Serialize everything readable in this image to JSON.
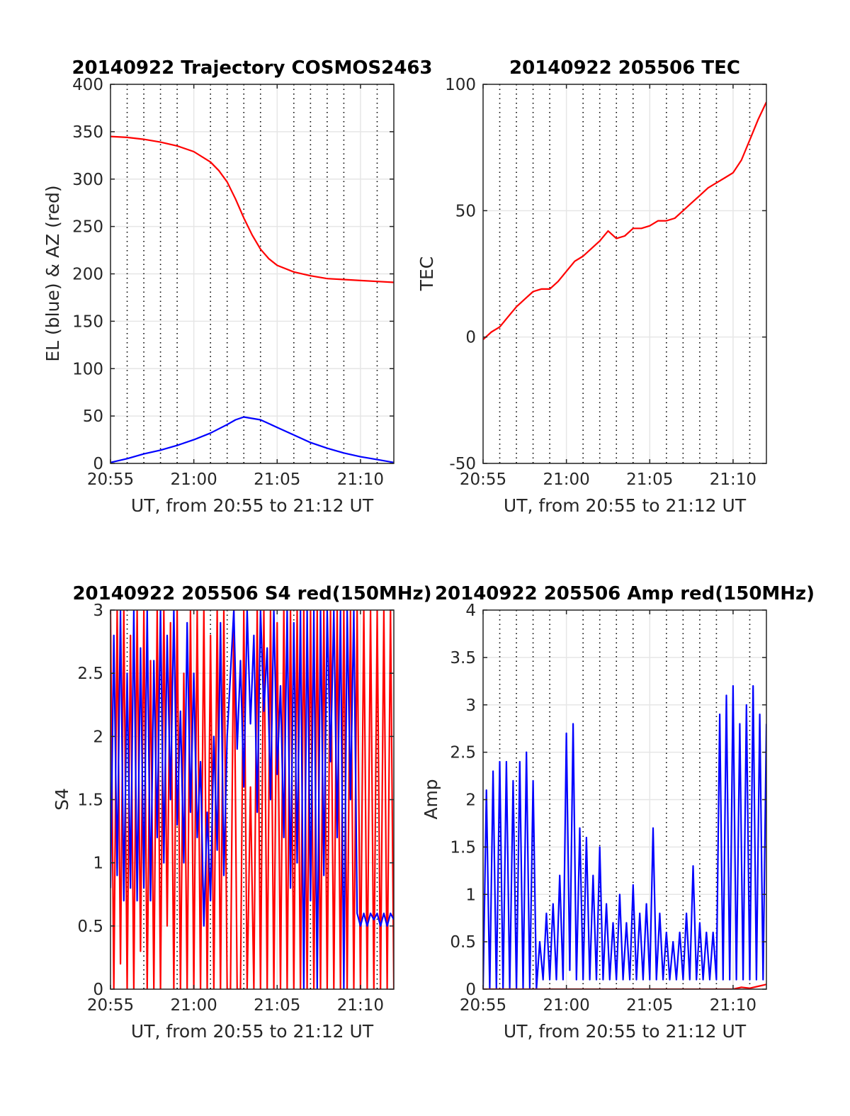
{
  "chart_data": [
    {
      "type": "line",
      "title": "20140922 Trajectory COSMOS2463",
      "xlabel": "UT, from 20:55 to 21:12 UT",
      "ylabel": "EL (blue) & AZ (red)",
      "xlim": [
        0,
        17
      ],
      "ylim": [
        0,
        400
      ],
      "xticks": [
        {
          "v": 0,
          "label": "20:55"
        },
        {
          "v": 5,
          "label": "21:00"
        },
        {
          "v": 10,
          "label": "21:05"
        },
        {
          "v": 15,
          "label": "21:10"
        }
      ],
      "yticks": [
        {
          "v": 0,
          "label": "0"
        },
        {
          "v": 50,
          "label": "50"
        },
        {
          "v": 100,
          "label": "100"
        },
        {
          "v": 150,
          "label": "150"
        },
        {
          "v": 200,
          "label": "200"
        },
        {
          "v": 250,
          "label": "250"
        },
        {
          "v": 300,
          "label": "300"
        },
        {
          "v": 350,
          "label": "350"
        },
        {
          "v": 400,
          "label": "400"
        }
      ],
      "minor_xgrid": [
        1,
        2,
        3,
        4,
        6,
        7,
        8,
        9,
        11,
        12,
        13,
        14,
        16
      ],
      "grid": true,
      "series": [
        {
          "color": "#ff0000",
          "x": [
            0,
            1,
            2,
            3,
            4,
            5,
            6,
            6.5,
            7,
            7.5,
            8,
            8.5,
            9,
            9.5,
            10,
            11,
            12,
            13,
            14,
            15,
            16,
            17
          ],
          "y": [
            345,
            344,
            342,
            339,
            335,
            329,
            318,
            309,
            297,
            279,
            259,
            241,
            226,
            216,
            209,
            202,
            198,
            195,
            194,
            193,
            192,
            191
          ]
        },
        {
          "color": "#0000ff",
          "x": [
            0,
            1,
            2,
            3,
            4,
            5,
            6,
            7,
            7.5,
            8,
            9,
            10,
            11,
            12,
            13,
            14,
            15,
            16,
            17
          ],
          "y": [
            1,
            5,
            10,
            14,
            19,
            25,
            32,
            41,
            46,
            49,
            46,
            38,
            30,
            22,
            16,
            11,
            7,
            4,
            1
          ]
        }
      ]
    },
    {
      "type": "line",
      "title": "20140922 205506 TEC",
      "xlabel": "UT, from 20:55 to 21:12 UT",
      "ylabel": "TEC",
      "xlim": [
        0,
        17
      ],
      "ylim": [
        -50,
        100
      ],
      "xticks": [
        {
          "v": 0,
          "label": "20:55"
        },
        {
          "v": 5,
          "label": "21:00"
        },
        {
          "v": 10,
          "label": "21:05"
        },
        {
          "v": 15,
          "label": "21:10"
        }
      ],
      "yticks": [
        {
          "v": -50,
          "label": "-50"
        },
        {
          "v": 0,
          "label": "0"
        },
        {
          "v": 50,
          "label": "50"
        },
        {
          "v": 100,
          "label": "100"
        }
      ],
      "minor_xgrid": [
        1,
        2,
        3,
        4,
        6,
        7,
        8,
        9,
        11,
        12,
        13,
        14,
        16
      ],
      "grid": true,
      "series": [
        {
          "color": "#ff0000",
          "x": [
            0,
            0.5,
            1,
            1.5,
            2,
            2.5,
            3,
            3.5,
            4,
            4.5,
            5,
            5.5,
            6,
            6.5,
            7,
            7.5,
            8,
            8.5,
            9,
            9.5,
            10,
            10.5,
            11,
            11.5,
            12,
            12.5,
            13,
            13.5,
            14,
            14.5,
            15,
            15.5,
            16,
            16.5,
            17
          ],
          "y": [
            -1,
            2,
            4,
            8,
            12,
            15,
            18,
            19,
            19,
            22,
            26,
            30,
            32,
            35,
            38,
            42,
            39,
            40,
            43,
            43,
            44,
            46,
            46,
            47,
            50,
            53,
            56,
            59,
            61,
            63,
            65,
            70,
            78,
            86,
            93
          ]
        }
      ]
    },
    {
      "type": "line",
      "title": "20140922 205506 S4 red(150MHz)",
      "xlabel": "UT, from 20:55 to 21:12 UT",
      "ylabel": "S4",
      "xlim": [
        0,
        17
      ],
      "ylim": [
        0,
        3
      ],
      "xticks": [
        {
          "v": 0,
          "label": "20:55"
        },
        {
          "v": 5,
          "label": "21:00"
        },
        {
          "v": 10,
          "label": "21:05"
        },
        {
          "v": 15,
          "label": "21:10"
        }
      ],
      "yticks": [
        {
          "v": 0,
          "label": "0"
        },
        {
          "v": 0.5,
          "label": "0.5"
        },
        {
          "v": 1,
          "label": "1"
        },
        {
          "v": 1.5,
          "label": "1.5"
        },
        {
          "v": 2,
          "label": "2"
        },
        {
          "v": 2.5,
          "label": "2.5"
        },
        {
          "v": 3,
          "label": "3"
        }
      ],
      "minor_xgrid": [
        1,
        2,
        3,
        4,
        6,
        7,
        8,
        9,
        11,
        12,
        13,
        14,
        16
      ],
      "grid": true,
      "series": [
        {
          "color": "#ff0000",
          "x": [
            0,
            0.2,
            0.4,
            0.6,
            0.8,
            1.0,
            1.2,
            1.4,
            1.6,
            1.8,
            2.0,
            2.2,
            2.4,
            2.6,
            2.8,
            3.0,
            3.2,
            3.4,
            3.6,
            3.8,
            4.0,
            4.2,
            4.4,
            4.6,
            4.8,
            5.0,
            5.2,
            5.4,
            5.6,
            5.8,
            6.0,
            6.2,
            6.4,
            6.6,
            6.8,
            7.0,
            7.2,
            7.4,
            7.6,
            7.8,
            8.0,
            8.2,
            8.4,
            8.6,
            8.8,
            9.0,
            9.2,
            9.4,
            9.6,
            9.8,
            10.0,
            10.2,
            10.4,
            10.6,
            10.8,
            11.0,
            11.2,
            11.4,
            11.6,
            11.8,
            12.0,
            12.2,
            12.4,
            12.6,
            12.8,
            13.0,
            13.2,
            13.4,
            13.6,
            13.8,
            14.0,
            14.2,
            14.4,
            14.6,
            14.8,
            15.0,
            15.2,
            15.4,
            15.6,
            15.8,
            16.0,
            16.2,
            16.4,
            16.6,
            16.8,
            17.0
          ],
          "y": [
            3,
            0,
            3,
            0.2,
            3,
            0,
            2.8,
            0,
            3,
            0.3,
            3,
            0,
            2.6,
            0,
            3,
            0,
            3,
            0.5,
            2.9,
            0,
            3,
            0,
            2.5,
            0,
            3,
            0,
            3,
            0,
            3,
            0,
            2.8,
            0,
            3,
            0,
            3,
            0,
            0,
            3,
            0,
            0,
            3,
            0,
            1.6,
            0,
            3,
            0,
            3,
            0,
            3,
            0,
            2.9,
            0,
            3,
            0,
            3,
            0,
            3,
            0,
            3,
            0,
            3,
            0,
            3,
            0,
            3,
            0,
            3,
            0,
            3,
            0,
            3,
            0,
            3,
            0,
            3,
            0,
            3,
            0,
            3,
            0,
            3,
            0,
            3,
            0,
            3,
            0
          ]
        },
        {
          "color": "#0000ff",
          "x": [
            0,
            0.2,
            0.4,
            0.6,
            0.8,
            1.0,
            1.2,
            1.4,
            1.6,
            1.8,
            2.0,
            2.2,
            2.4,
            2.6,
            2.8,
            3.0,
            3.2,
            3.4,
            3.6,
            3.8,
            4.0,
            4.2,
            4.4,
            4.6,
            4.8,
            5.0,
            5.2,
            5.4,
            5.6,
            5.8,
            6.0,
            6.2,
            6.4,
            6.6,
            6.8,
            7.0,
            7.2,
            7.4,
            7.6,
            7.8,
            8.0,
            8.2,
            8.4,
            8.6,
            8.8,
            9.0,
            9.2,
            9.4,
            9.6,
            9.8,
            10.0,
            10.2,
            10.4,
            10.6,
            10.8,
            11.0,
            11.2,
            11.4,
            11.6,
            11.8,
            12.0,
            12.2,
            12.4,
            12.6,
            12.8,
            13.0,
            13.2,
            13.4,
            13.6,
            13.8,
            14.0,
            14.2,
            14.4,
            14.6,
            14.8,
            15.0,
            15.2,
            15.4,
            15.6,
            15.8,
            16.0,
            16.2,
            16.4,
            16.6,
            16.8,
            17.0
          ],
          "y": [
            0.8,
            2.8,
            0.9,
            3,
            0.7,
            2.5,
            0.8,
            3,
            0.7,
            2.7,
            0.8,
            3,
            0.7,
            2.6,
            1.2,
            3,
            1.0,
            2.8,
            1.5,
            3,
            1.3,
            2.2,
            1.0,
            2.9,
            1.4,
            2.5,
            1.2,
            1.8,
            0.5,
            1.4,
            0.7,
            2.0,
            1.1,
            2.9,
            0.9,
            2.0,
            2.5,
            3,
            1.9,
            2.6,
            1.6,
            3,
            2.1,
            2.8,
            1.4,
            3,
            2.2,
            2.7,
            1.5,
            3,
            1.7,
            2.4,
            1.2,
            3,
            0.8,
            2.9,
            1.0,
            3,
            0,
            3,
            0.7,
            3,
            0,
            3,
            0.9,
            3,
            1.8,
            3,
            1.2,
            3,
            0,
            3,
            1.5,
            3,
            0.6,
            0.5,
            0.6,
            0.5,
            0.6,
            0.55,
            0.6,
            0.5,
            0.6,
            0.5,
            0.6,
            0.55
          ]
        }
      ]
    },
    {
      "type": "line",
      "title": "20140922 205506 Amp red(150MHz)",
      "xlabel": "UT, from 20:55 to 21:12 UT",
      "ylabel": "Amp",
      "xlim": [
        0,
        17
      ],
      "ylim": [
        0,
        4
      ],
      "xticks": [
        {
          "v": 0,
          "label": "20:55"
        },
        {
          "v": 5,
          "label": "21:00"
        },
        {
          "v": 10,
          "label": "21:05"
        },
        {
          "v": 15,
          "label": "21:10"
        }
      ],
      "yticks": [
        {
          "v": 0,
          "label": "0"
        },
        {
          "v": 0.5,
          "label": "0.5"
        },
        {
          "v": 1,
          "label": "1"
        },
        {
          "v": 1.5,
          "label": "1.5"
        },
        {
          "v": 2,
          "label": "2"
        },
        {
          "v": 2.5,
          "label": "2.5"
        },
        {
          "v": 3,
          "label": "3"
        },
        {
          "v": 3.5,
          "label": "3.5"
        },
        {
          "v": 4,
          "label": "4"
        }
      ],
      "minor_xgrid": [
        1,
        2,
        3,
        4,
        6,
        7,
        8,
        9,
        11,
        12,
        13,
        14,
        16
      ],
      "grid": true,
      "series": [
        {
          "color": "#0000ff",
          "x": [
            0,
            0.2,
            0.4,
            0.6,
            0.8,
            1.0,
            1.2,
            1.4,
            1.6,
            1.8,
            2.0,
            2.2,
            2.4,
            2.6,
            2.8,
            3.0,
            3.2,
            3.4,
            3.6,
            3.8,
            4.0,
            4.2,
            4.4,
            4.6,
            4.8,
            5.0,
            5.2,
            5.4,
            5.6,
            5.8,
            6.0,
            6.2,
            6.4,
            6.6,
            6.8,
            7.0,
            7.2,
            7.4,
            7.6,
            7.8,
            8.0,
            8.2,
            8.4,
            8.6,
            8.8,
            9.0,
            9.2,
            9.4,
            9.6,
            9.8,
            10.0,
            10.2,
            10.4,
            10.6,
            10.8,
            11.0,
            11.2,
            11.4,
            11.6,
            11.8,
            12.0,
            12.2,
            12.4,
            12.6,
            12.8,
            13.0,
            13.2,
            13.4,
            13.6,
            13.8,
            14.0,
            14.2,
            14.4,
            14.6,
            14.8,
            15.0,
            15.2,
            15.4,
            15.6,
            15.8,
            16.0,
            16.2,
            16.4,
            16.6,
            16.8,
            17.0
          ],
          "y": [
            0,
            2.1,
            0,
            2.3,
            0,
            2.4,
            0,
            2.4,
            0,
            2.2,
            0,
            2.4,
            0,
            2.5,
            0,
            2.2,
            0,
            0.5,
            0.1,
            0.8,
            0.1,
            0.9,
            0.1,
            1.2,
            0.1,
            2.7,
            0.2,
            2.8,
            0.1,
            1.7,
            0.1,
            1.6,
            0.1,
            1.2,
            0.1,
            1.5,
            0.1,
            0.9,
            0.1,
            0.7,
            0.1,
            1.0,
            0.1,
            0.7,
            0.1,
            1.1,
            0.1,
            0.8,
            0.1,
            0.9,
            0.1,
            1.7,
            0.1,
            0.8,
            0.1,
            0.6,
            0.1,
            0.5,
            0.1,
            0.6,
            0.1,
            0.8,
            0.1,
            1.3,
            0.1,
            0.7,
            0.1,
            0.6,
            0.1,
            0.6,
            0.1,
            2.9,
            0.1,
            3.1,
            0.1,
            3.2,
            0.1,
            2.8,
            0.1,
            3.0,
            0.1,
            3.2,
            0.1,
            2.9,
            0.1,
            2.8
          ]
        },
        {
          "color": "#ff0000",
          "x": [
            0,
            15,
            15.5,
            16,
            16.5,
            17
          ],
          "y": [
            0,
            0,
            0.02,
            0.01,
            0.03,
            0.05
          ]
        }
      ]
    }
  ]
}
